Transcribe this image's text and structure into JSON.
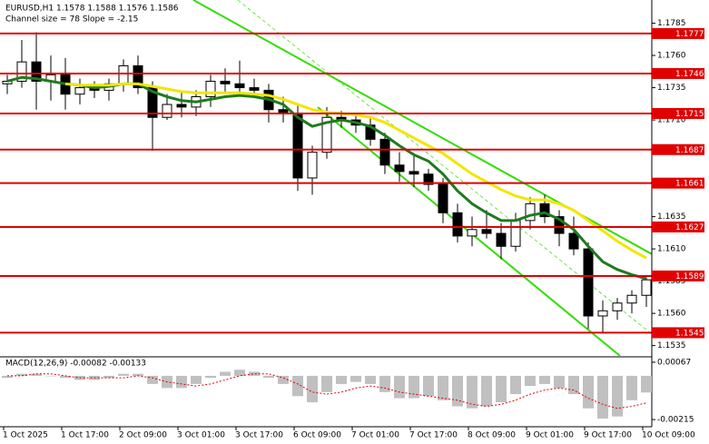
{
  "chart_data": [
    {
      "type": "candlestick",
      "title": "EURUSD,H1  1.1578 1.1588 1.1576 1.1586",
      "subtitle": "Channel size = 78 Slope = -2.15",
      "categories": [
        "1 Oct 2025",
        null,
        null,
        null,
        "1 Oct 17:00",
        null,
        null,
        null,
        "2 Oct 09:00",
        null,
        null,
        null,
        "3 Oct 01:00",
        null,
        null,
        null,
        "3 Oct 17:00",
        null,
        null,
        null,
        "6 Oct 09:00",
        null,
        null,
        null,
        "7 Oct 01:00",
        null,
        null,
        null,
        "7 Oct 17:00",
        null,
        null,
        null,
        "8 Oct 09:00",
        null,
        null,
        null,
        "9 Oct 01:00",
        null,
        null,
        null,
        "9 Oct 17:00",
        null,
        null,
        null,
        "10 Oct 09:00"
      ],
      "open": [
        1.1738,
        1.174,
        1.1755,
        1.174,
        1.1745,
        1.173,
        1.1735,
        1.1733,
        1.1738,
        1.1752,
        1.1735,
        1.1712,
        1.1722,
        1.172,
        1.1728,
        1.174,
        1.1738,
        1.1735,
        1.1733,
        1.1718,
        1.1715,
        1.1665,
        1.1685,
        1.1712,
        1.171,
        1.1706,
        1.1695,
        1.1675,
        1.167,
        1.1668,
        1.166,
        1.1638,
        1.162,
        1.1625,
        1.1622,
        1.1612,
        1.1632,
        1.1645,
        1.1635,
        1.1622,
        1.161,
        1.1558,
        1.1562,
        1.1568,
        1.1574
      ],
      "high": [
        1.1745,
        1.1772,
        1.1778,
        1.176,
        1.1758,
        1.1742,
        1.174,
        1.1742,
        1.1757,
        1.176,
        1.174,
        1.173,
        1.1732,
        1.1733,
        1.1745,
        1.175,
        1.1756,
        1.1742,
        1.1738,
        1.1728,
        1.1722,
        1.169,
        1.172,
        1.1717,
        1.1715,
        1.1712,
        1.17,
        1.1685,
        1.1682,
        1.1672,
        1.1665,
        1.1645,
        1.1635,
        1.164,
        1.163,
        1.1638,
        1.165,
        1.1652,
        1.164,
        1.1635,
        1.1615,
        1.157,
        1.1572,
        1.1578,
        1.1588
      ],
      "low": [
        1.173,
        1.1735,
        1.1718,
        1.1725,
        1.1718,
        1.1722,
        1.1727,
        1.1725,
        1.1732,
        1.173,
        1.1686,
        1.171,
        1.1712,
        1.1713,
        1.172,
        1.1732,
        1.1728,
        1.1727,
        1.1708,
        1.1708,
        1.1655,
        1.1652,
        1.168,
        1.1704,
        1.17,
        1.169,
        1.1668,
        1.1662,
        1.1658,
        1.1655,
        1.163,
        1.1615,
        1.1612,
        1.1618,
        1.1602,
        1.1608,
        1.1625,
        1.163,
        1.1612,
        1.1605,
        1.1548,
        1.1545,
        1.1555,
        1.156,
        1.1565
      ],
      "close": [
        1.174,
        1.1755,
        1.174,
        1.1745,
        1.173,
        1.1735,
        1.1733,
        1.1738,
        1.1752,
        1.1735,
        1.1712,
        1.1722,
        1.172,
        1.1728,
        1.174,
        1.1738,
        1.1735,
        1.1733,
        1.1718,
        1.1715,
        1.1665,
        1.1685,
        1.1712,
        1.171,
        1.1706,
        1.1695,
        1.1675,
        1.167,
        1.1668,
        1.166,
        1.1638,
        1.162,
        1.1625,
        1.1622,
        1.1612,
        1.1632,
        1.1645,
        1.1635,
        1.1622,
        1.161,
        1.1558,
        1.1562,
        1.1568,
        1.1574,
        1.1586
      ],
      "candle_color": "#000000",
      "lines": [
        {
          "color": "#1e7b1e",
          "values": [
            1.174,
            1.1743,
            1.1742,
            1.174,
            1.1738,
            1.1737,
            1.1735,
            1.1736,
            1.1738,
            1.1738,
            1.1732,
            1.1728,
            1.1725,
            1.1724,
            1.1726,
            1.1728,
            1.1729,
            1.1728,
            1.1726,
            1.1722,
            1.1712,
            1.1705,
            1.1708,
            1.171,
            1.1708,
            1.1705,
            1.1698,
            1.169,
            1.1683,
            1.1678,
            1.1668,
            1.1655,
            1.1645,
            1.1638,
            1.1632,
            1.1632,
            1.1636,
            1.1638,
            1.1633,
            1.1625,
            1.1612,
            1.16,
            1.1594,
            1.159,
            1.1587
          ]
        },
        {
          "color": "#f2e600",
          "values": [
            null,
            null,
            null,
            null,
            1.1738,
            1.1737,
            1.1737,
            1.1737,
            1.1738,
            1.1738,
            1.1736,
            1.1734,
            1.1732,
            1.1731,
            1.1731,
            1.1731,
            1.1731,
            1.173,
            1.1729,
            1.1726,
            1.1722,
            1.1718,
            1.1716,
            1.1715,
            1.1714,
            1.1712,
            1.1708,
            1.1702,
            1.1696,
            1.169,
            1.1684,
            1.1676,
            1.1668,
            1.1662,
            1.1656,
            1.1651,
            1.1648,
            1.1648,
            1.1645,
            1.164,
            1.1632,
            1.1624,
            1.1616,
            1.1609,
            1.1603
          ]
        }
      ],
      "levels": [
        1.1777,
        1.1746,
        1.1715,
        1.1687,
        1.1661,
        1.1627,
        1.1589,
        1.1545
      ],
      "level_color": "#e00000",
      "ylim": [
        1.1527,
        1.1803
      ],
      "yticks": [
        1.1785,
        {
          "value": 1.176,
          "label": "1.1760"
        },
        1.1735,
        {
          "value": 1.171,
          "label": "1.1710"
        },
        1.1685,
        {
          "value": 1.166,
          "label": "1.1660"
        },
        1.1635,
        {
          "value": 1.161,
          "label": "1.1610"
        },
        1.1585,
        {
          "value": 1.156,
          "label": "1.1560"
        },
        1.1535
      ]
    },
    {
      "type": "bar",
      "title": "MACD(12,26,9) -0.00082 -0.00133",
      "values": [
        -0.0001,
        0.0001,
        0.0001,
        0,
        -0.0001,
        -0.0002,
        -0.0002,
        -0.0001,
        0.0001,
        0.0001,
        -0.0004,
        -0.0006,
        -0.0006,
        -0.0004,
        -0.0001,
        0.0002,
        0.0003,
        0.0002,
        -0.0001,
        -0.0004,
        -0.001,
        -0.0013,
        -0.0008,
        -0.0004,
        -0.0003,
        -0.0004,
        -0.0008,
        -0.0011,
        -0.0011,
        -0.001,
        -0.0012,
        -0.0015,
        -0.0016,
        -0.0015,
        -0.0013,
        -0.0009,
        -0.0005,
        -0.0004,
        -0.0006,
        -0.0009,
        -0.0016,
        -0.0021,
        -0.002,
        -0.0012,
        -0.00082
      ],
      "color": "#c0c0c0",
      "signal": [
        0,
        0,
        0.0001,
        0.0001,
        0,
        -0.0001,
        -0.0001,
        -0.0001,
        -0.0001,
        0,
        -0.0001,
        -0.0003,
        -0.0004,
        -0.0005,
        -0.0004,
        -0.0002,
        0,
        0.0001,
        0.0001,
        -0.0001,
        -0.0004,
        -0.0008,
        -0.0009,
        -0.0008,
        -0.0006,
        -0.0005,
        -0.0006,
        -0.0008,
        -0.0009,
        -0.001,
        -0.0011,
        -0.0012,
        -0.0014,
        -0.0015,
        -0.0014,
        -0.0012,
        -0.0009,
        -0.0007,
        -0.0006,
        -0.0007,
        -0.0011,
        -0.0014,
        -0.0016,
        -0.0015,
        -0.00133
      ],
      "signal_color": "#e00000",
      "ylim": [
        -0.00237,
        0.00089
      ],
      "yticks": [
        0.00067,
        -0.00215
      ]
    }
  ]
}
